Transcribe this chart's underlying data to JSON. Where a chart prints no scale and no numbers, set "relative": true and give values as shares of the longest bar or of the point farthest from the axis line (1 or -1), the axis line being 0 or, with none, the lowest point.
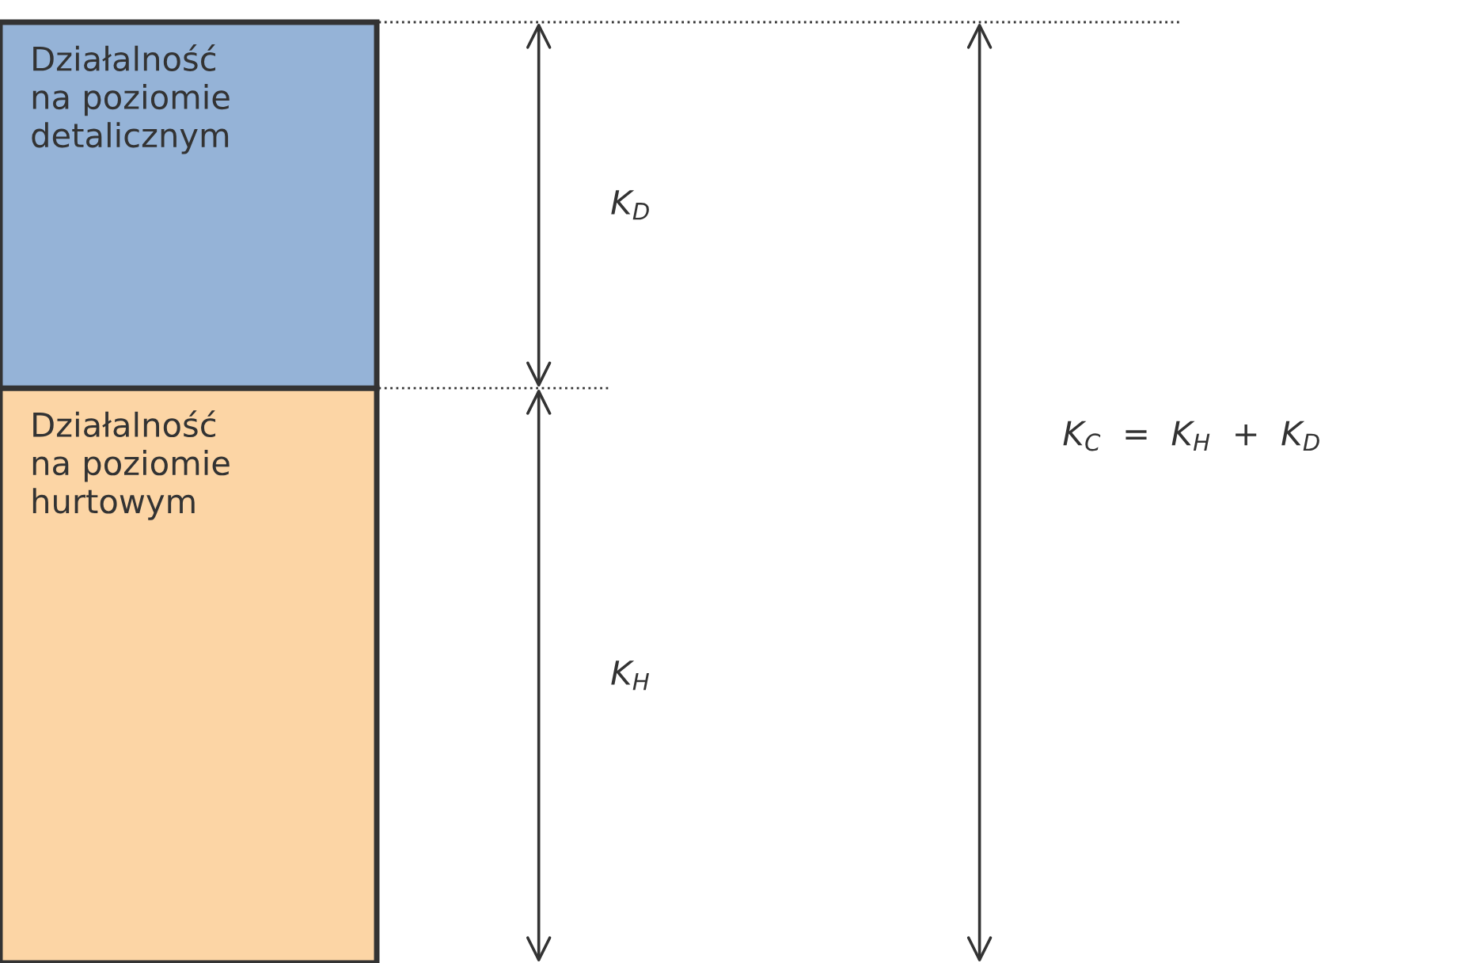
{
  "chart_data": {
    "type": "bar",
    "relative": true,
    "stacked": true,
    "categories": [
      null
    ],
    "series": [
      {
        "name": "Działalność\nna poziomie\nhurtowym",
        "color": "#fcd5a5",
        "values": [
          0.611
        ]
      },
      {
        "name": "Działalność\nna poziomie\ndetalicznym",
        "color": "#95b3d7",
        "values": [
          0.389
        ]
      }
    ],
    "ref_lines": [
      {
        "axis": "y",
        "value": 0.611,
        "line_style": "dotted",
        "color": "#333333"
      },
      {
        "axis": "y",
        "value": 1,
        "line_style": "dotted",
        "color": "#333333"
      }
    ],
    "annotations": [
      "K$_{D}$",
      "K$_{H}$",
      "K$_{C}$  =  K$_{H}$  +  K$_{D}$"
    ],
    "orientation": "vertical"
  }
}
